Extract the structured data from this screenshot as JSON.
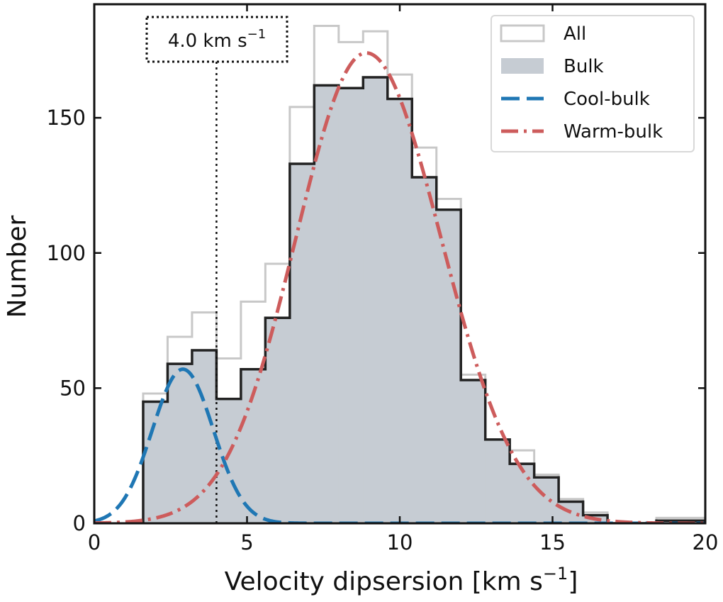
{
  "chart_data": {
    "type": "histogram",
    "xlabel_main": "Velocity dipsersion [km s",
    "xlabel_sup": "−1",
    "xlabel_end": "]",
    "ylabel": "Number",
    "xlim": [
      0,
      20
    ],
    "ylim": [
      0,
      192
    ],
    "xticks": [
      0,
      5,
      10,
      15,
      20
    ],
    "yticks": [
      0,
      50,
      100,
      150
    ],
    "bin_edges": [
      1.6,
      2.4,
      3.2,
      4.0,
      4.8,
      5.6,
      6.4,
      7.2,
      8.0,
      8.8,
      9.6,
      10.4,
      11.2,
      12.0,
      12.8,
      13.6,
      14.4,
      15.2,
      16.0,
      16.8,
      17.6,
      18.4,
      19.2,
      20.0
    ],
    "series": [
      {
        "name": "All",
        "style": "step-outline",
        "color": "#c8c8c8",
        "values": [
          48,
          69,
          78,
          61,
          82,
          96,
          154,
          184,
          178,
          182,
          166,
          139,
          120,
          55,
          31,
          27,
          18,
          9,
          4,
          0,
          0,
          2,
          2
        ]
      },
      {
        "name": "Bulk",
        "style": "filled-step",
        "color": "#c6ccd3",
        "edge_color": "#222222",
        "values": [
          45,
          59,
          64,
          46,
          57,
          76,
          133,
          162,
          161,
          165,
          157,
          128,
          116,
          53,
          31,
          22,
          17,
          8,
          3,
          0,
          0,
          1,
          1
        ]
      },
      {
        "name": "Cool-bulk",
        "style": "dashed",
        "color": "#1f77b4",
        "model": {
          "amplitude": 57,
          "mean": 2.9,
          "sigma": 1.0
        }
      },
      {
        "name": "Warm-bulk",
        "style": "dashdot",
        "color": "#cd5c5c",
        "model": {
          "amplitude": 174,
          "mean": 8.9,
          "sigma_left": 2.3,
          "sigma_right": 2.45
        }
      }
    ],
    "vline": {
      "x": 4.0,
      "label_main": "4.0 km s",
      "label_sup": "−1"
    },
    "legend_position": "top-right"
  }
}
